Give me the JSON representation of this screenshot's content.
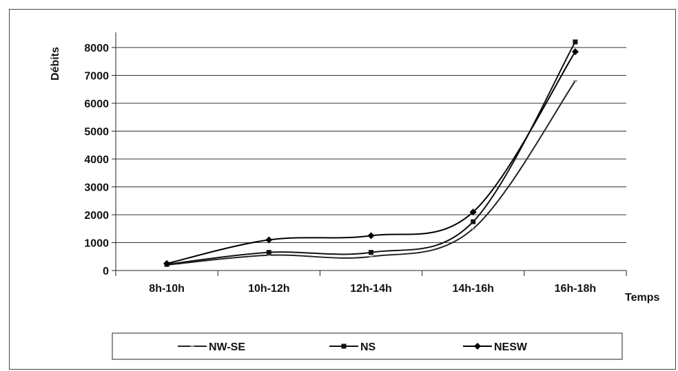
{
  "chart_data": {
    "type": "line",
    "title": "",
    "xlabel": "Temps",
    "ylabel": "Débits",
    "categories": [
      "8h-10h",
      "10h-12h",
      "12h-14h",
      "14h-16h",
      "16h-18h"
    ],
    "ylim": [
      0,
      8000
    ],
    "yticks": [
      0,
      1000,
      2000,
      3000,
      4000,
      5000,
      6000,
      7000,
      8000
    ],
    "grid": true,
    "legend_position": "bottom",
    "series": [
      {
        "name": "NW-SE",
        "values": [
          200,
          550,
          500,
          1500,
          6800
        ],
        "marker": "dash",
        "color": "#222222"
      },
      {
        "name": "NS",
        "values": [
          220,
          650,
          650,
          1750,
          8200
        ],
        "marker": "square",
        "color": "#111111"
      },
      {
        "name": "NESW",
        "values": [
          250,
          1100,
          1250,
          2100,
          7850
        ],
        "marker": "diamond",
        "color": "#000000"
      }
    ]
  }
}
